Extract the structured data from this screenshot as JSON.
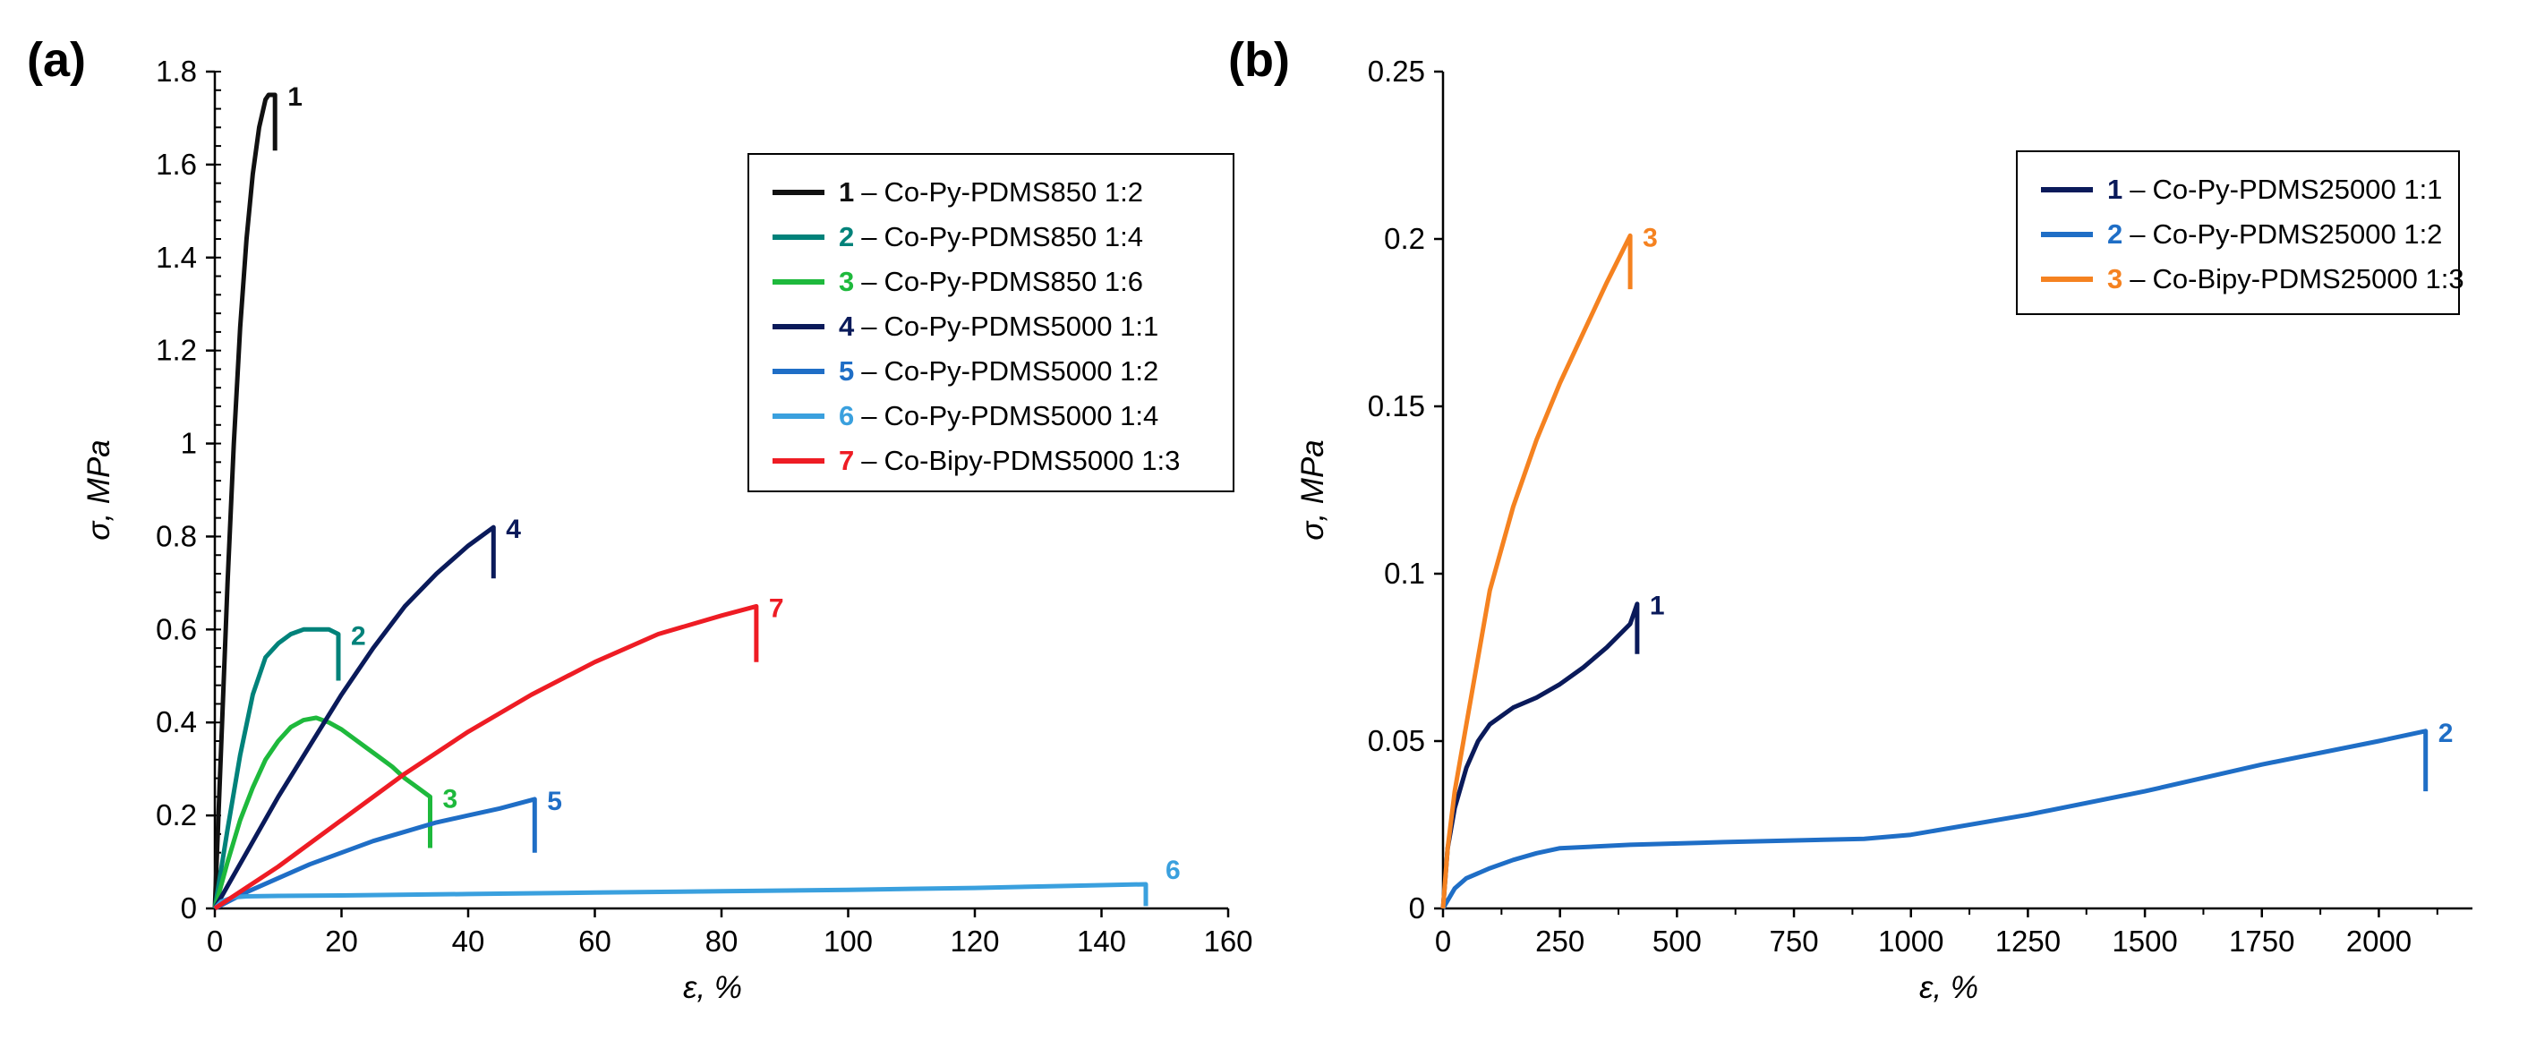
{
  "chart_data": [
    {
      "panel_label": "(a)",
      "type": "line",
      "title": "",
      "xlabel": "ε, %",
      "ylabel": "σ, MPa",
      "xlim": [
        0,
        160
      ],
      "ylim": [
        0,
        1.8
      ],
      "xticks": [
        "0",
        "20",
        "40",
        "60",
        "80",
        "100",
        "120",
        "140",
        "160"
      ],
      "yticks": [
        "0",
        "0.2",
        "0.4",
        "0.6",
        "0.8",
        "1",
        "1.2",
        "1.4",
        "1.6",
        "1.8"
      ],
      "legend_position": "top-right",
      "series": [
        {
          "id": "1",
          "name": "Co-Py-PDMS850 1:2",
          "color": "#111111",
          "x": [
            0,
            1,
            2,
            3,
            4,
            5,
            6,
            7,
            8,
            8.5,
            9.5,
            9.5
          ],
          "y": [
            0,
            0.35,
            0.7,
            1.0,
            1.25,
            1.44,
            1.58,
            1.68,
            1.74,
            1.75,
            1.75,
            1.63
          ]
        },
        {
          "id": "2",
          "name": "Co-Py-PDMS850 1:4",
          "color": "#00827a",
          "x": [
            0,
            2,
            4,
            6,
            8,
            10,
            12,
            14,
            16,
            18,
            19.5,
            19.5
          ],
          "y": [
            0,
            0.17,
            0.33,
            0.46,
            0.54,
            0.57,
            0.59,
            0.6,
            0.6,
            0.6,
            0.59,
            0.49
          ]
        },
        {
          "id": "3",
          "name": "Co-Py-PDMS850 1:6",
          "color": "#1eb93c",
          "x": [
            0,
            2,
            4,
            6,
            8,
            10,
            12,
            14,
            16,
            18,
            20,
            22,
            24,
            26,
            28,
            30,
            32,
            34,
            34
          ],
          "y": [
            0,
            0.1,
            0.19,
            0.26,
            0.32,
            0.36,
            0.39,
            0.405,
            0.41,
            0.4,
            0.385,
            0.365,
            0.345,
            0.325,
            0.305,
            0.28,
            0.26,
            0.24,
            0.13
          ]
        },
        {
          "id": "4",
          "name": "Co-Py-PDMS5000 1:1",
          "color": "#0a1a5a",
          "x": [
            0,
            5,
            10,
            15,
            20,
            25,
            30,
            35,
            40,
            44,
            44
          ],
          "y": [
            0,
            0.12,
            0.24,
            0.35,
            0.46,
            0.56,
            0.65,
            0.72,
            0.78,
            0.82,
            0.71
          ]
        },
        {
          "id": "5",
          "name": "Co-Py-PDMS5000 1:2",
          "color": "#1f6ec6",
          "x": [
            0,
            5,
            10,
            15,
            20,
            25,
            30,
            35,
            40,
            45,
            50.5,
            50.5
          ],
          "y": [
            0,
            0.035,
            0.065,
            0.095,
            0.12,
            0.145,
            0.165,
            0.185,
            0.2,
            0.215,
            0.235,
            0.12
          ]
        },
        {
          "id": "6",
          "name": "Co-Py-PDMS5000 1:4",
          "color": "#3aa0de",
          "x": [
            0,
            1,
            3,
            5,
            10,
            20,
            40,
            60,
            80,
            100,
            120,
            140,
            147,
            147
          ],
          "y": [
            0,
            0.015,
            0.024,
            0.026,
            0.027,
            0.028,
            0.031,
            0.034,
            0.037,
            0.04,
            0.044,
            0.05,
            0.052,
            0.005
          ]
        },
        {
          "id": "7",
          "name": "Co-Bipy-PDMS5000 1:3",
          "color": "#ee1c24",
          "x": [
            0,
            10,
            20,
            30,
            40,
            50,
            60,
            70,
            80,
            85.5,
            85.5
          ],
          "y": [
            0,
            0.09,
            0.19,
            0.29,
            0.38,
            0.46,
            0.53,
            0.59,
            0.63,
            0.65,
            0.53
          ]
        }
      ]
    },
    {
      "panel_label": "(b)",
      "type": "line",
      "title": "",
      "xlabel": "ε, %",
      "ylabel": "σ, MPa",
      "xlim": [
        0,
        2200
      ],
      "ylim": [
        0,
        0.25
      ],
      "xticks": [
        "0",
        "250",
        "500",
        "750",
        "1000",
        "1250",
        "1500",
        "1750",
        "2000"
      ],
      "yticks": [
        "0",
        "0.05",
        "0.1",
        "0.15",
        "0.2",
        "0.25"
      ],
      "legend_position": "top-right",
      "series": [
        {
          "id": "1",
          "name": "Co-Py-PDMS25000 1:1",
          "color": "#0a1a5a",
          "x": [
            0,
            10,
            25,
            50,
            75,
            100,
            150,
            200,
            250,
            300,
            350,
            400,
            415,
            415
          ],
          "y": [
            0,
            0.018,
            0.03,
            0.042,
            0.05,
            0.055,
            0.06,
            0.063,
            0.067,
            0.072,
            0.078,
            0.085,
            0.091,
            0.076
          ]
        },
        {
          "id": "2",
          "name": "Co-Py-PDMS25000 1:2",
          "color": "#1f6ec6",
          "x": [
            0,
            25,
            50,
            100,
            150,
            200,
            250,
            400,
            600,
            900,
            1000,
            1250,
            1500,
            1750,
            2000,
            2100,
            2100
          ],
          "y": [
            0,
            0.006,
            0.009,
            0.012,
            0.0145,
            0.0165,
            0.018,
            0.019,
            0.0198,
            0.0208,
            0.022,
            0.028,
            0.035,
            0.043,
            0.05,
            0.053,
            0.035
          ]
        },
        {
          "id": "3",
          "name": "Co-Bipy-PDMS25000 1:3",
          "color": "#f58220",
          "x": [
            0,
            10,
            25,
            50,
            75,
            100,
            150,
            200,
            250,
            300,
            350,
            400,
            400
          ],
          "y": [
            0,
            0.018,
            0.035,
            0.055,
            0.075,
            0.095,
            0.12,
            0.14,
            0.157,
            0.172,
            0.187,
            0.201,
            0.185
          ]
        }
      ]
    }
  ]
}
